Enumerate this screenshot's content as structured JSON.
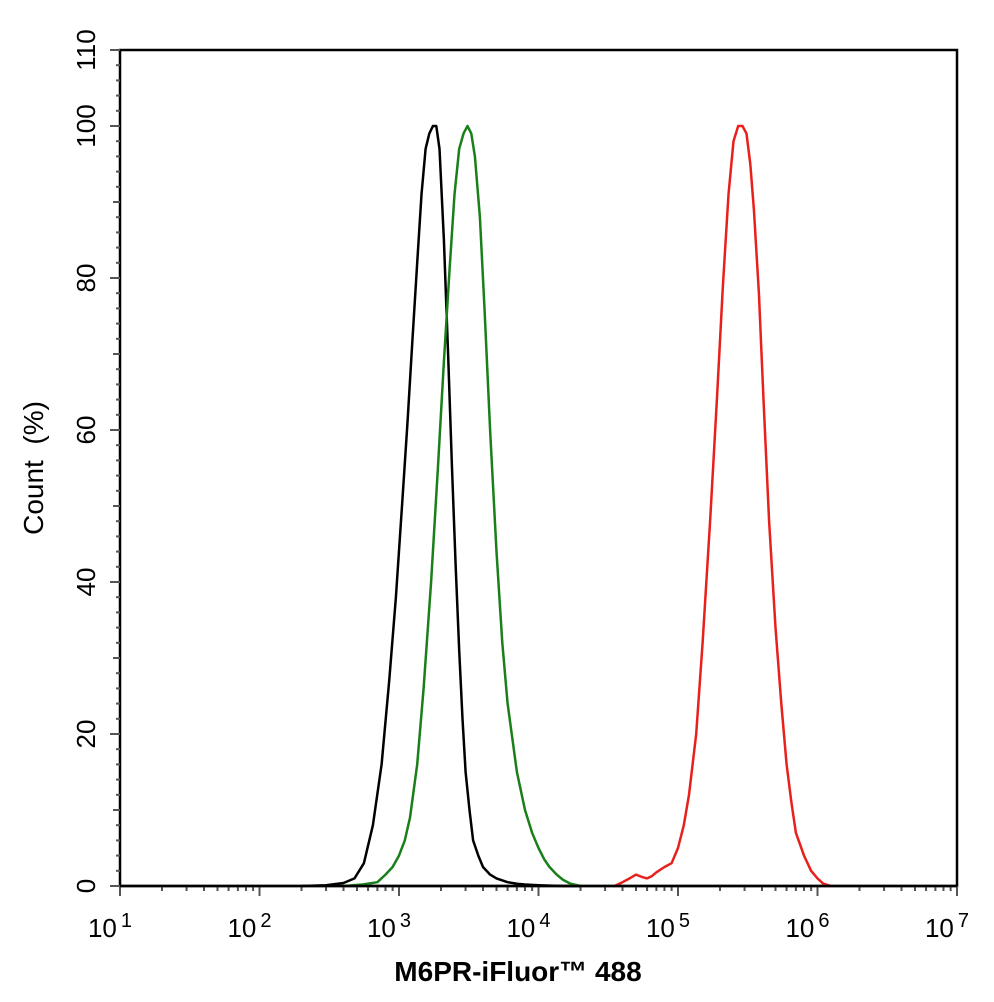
{
  "chart_data": {
    "type": "line",
    "title": "",
    "xlabel": "M6PR-iFluor™ 488",
    "ylabel": "Count  (%)",
    "x_scale": "log",
    "xlim": [
      10,
      10000000
    ],
    "ylim": [
      0,
      110
    ],
    "x_ticks": [
      {
        "value": 10,
        "base": "10",
        "exp": "1"
      },
      {
        "value": 100,
        "base": "10",
        "exp": "2"
      },
      {
        "value": 1000,
        "base": "10",
        "exp": "3"
      },
      {
        "value": 10000,
        "base": "10",
        "exp": "4"
      },
      {
        "value": 100000,
        "base": "10",
        "exp": "5"
      },
      {
        "value": 1000000,
        "base": "10",
        "exp": "6"
      },
      {
        "value": 10000000,
        "base": "10",
        "exp": "7"
      }
    ],
    "y_ticks": [
      0,
      20,
      40,
      60,
      80,
      100,
      110
    ],
    "grid": false,
    "legend": "none",
    "series": [
      {
        "color": "#000000",
        "x": [
          200,
          300,
          400,
          480,
          560,
          650,
          750,
          850,
          950,
          1050,
          1150,
          1250,
          1350,
          1450,
          1550,
          1650,
          1750,
          1850,
          1950,
          2100,
          2250,
          2400,
          2550,
          2700,
          2850,
          3000,
          3200,
          3400,
          3700,
          4000,
          4500,
          5000,
          6000,
          7000,
          8000,
          10000,
          15000,
          20000
        ],
        "y": [
          0,
          0.1,
          0.4,
          1,
          3,
          8,
          16,
          27,
          38,
          50,
          61,
          72,
          82,
          91,
          97,
          99,
          100,
          100,
          97,
          85,
          70,
          55,
          42,
          31,
          22,
          15,
          10,
          6,
          4,
          2.5,
          1.5,
          1,
          0.5,
          0.3,
          0.2,
          0.1,
          0,
          0
        ]
      },
      {
        "color": "#1a7f1a",
        "x": [
          400,
          550,
          700,
          800,
          900,
          1000,
          1100,
          1200,
          1350,
          1500,
          1700,
          1900,
          2100,
          2300,
          2500,
          2700,
          2900,
          3100,
          3300,
          3500,
          3800,
          4100,
          4500,
          5000,
          5500,
          6000,
          7000,
          8000,
          9000,
          10000,
          11000,
          12000,
          13500,
          15000,
          17000,
          20000
        ],
        "y": [
          0,
          0.2,
          0.5,
          1.5,
          2.5,
          4,
          6,
          9,
          16,
          26,
          40,
          55,
          69,
          81,
          91,
          97,
          99,
          100,
          99,
          96,
          88,
          76,
          60,
          44,
          32,
          24,
          15,
          10,
          7,
          5,
          3.5,
          2.5,
          1.5,
          0.8,
          0.3,
          0
        ]
      },
      {
        "color": "#e8201c",
        "x": [
          35000,
          40000,
          45000,
          50000,
          55000,
          60000,
          65000,
          70000,
          80000,
          90000,
          100000,
          110000,
          120000,
          135000,
          150000,
          170000,
          190000,
          210000,
          230000,
          250000,
          270000,
          290000,
          310000,
          330000,
          350000,
          380000,
          410000,
          450000,
          500000,
          550000,
          600000,
          650000,
          700000,
          800000,
          900000,
          1000000,
          1100000,
          1250000
        ],
        "y": [
          0,
          0.5,
          1,
          1.5,
          1.2,
          1,
          1.3,
          1.8,
          2.5,
          3,
          5,
          8,
          12,
          20,
          32,
          48,
          64,
          79,
          91,
          98,
          100,
          100,
          99,
          95,
          89,
          78,
          64,
          48,
          34,
          24,
          16,
          11,
          7,
          4,
          2,
          1,
          0.3,
          0
        ]
      }
    ]
  }
}
